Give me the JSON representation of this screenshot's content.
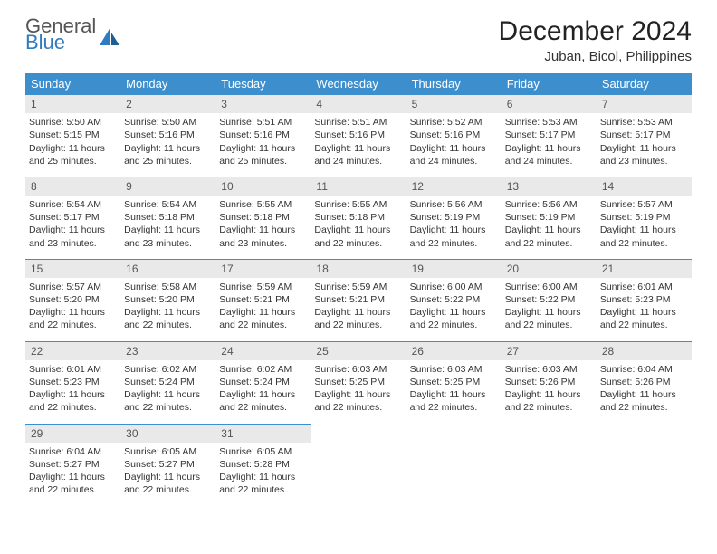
{
  "brand": {
    "line1": "General",
    "line2": "Blue"
  },
  "title": "December 2024",
  "location": "Juban, Bicol, Philippines",
  "colors": {
    "header_bg": "#3c8ecd",
    "header_text": "#ffffff",
    "daynum_bg": "#e9e9e9",
    "daynum_text": "#555555",
    "rule": "#3c8ecd",
    "brand_accent": "#2f7bbf"
  },
  "weekdays": [
    "Sunday",
    "Monday",
    "Tuesday",
    "Wednesday",
    "Thursday",
    "Friday",
    "Saturday"
  ],
  "weeks": [
    [
      {
        "n": "1",
        "sr": "Sunrise: 5:50 AM",
        "ss": "Sunset: 5:15 PM",
        "dl": "Daylight: 11 hours and 25 minutes."
      },
      {
        "n": "2",
        "sr": "Sunrise: 5:50 AM",
        "ss": "Sunset: 5:16 PM",
        "dl": "Daylight: 11 hours and 25 minutes."
      },
      {
        "n": "3",
        "sr": "Sunrise: 5:51 AM",
        "ss": "Sunset: 5:16 PM",
        "dl": "Daylight: 11 hours and 25 minutes."
      },
      {
        "n": "4",
        "sr": "Sunrise: 5:51 AM",
        "ss": "Sunset: 5:16 PM",
        "dl": "Daylight: 11 hours and 24 minutes."
      },
      {
        "n": "5",
        "sr": "Sunrise: 5:52 AM",
        "ss": "Sunset: 5:16 PM",
        "dl": "Daylight: 11 hours and 24 minutes."
      },
      {
        "n": "6",
        "sr": "Sunrise: 5:53 AM",
        "ss": "Sunset: 5:17 PM",
        "dl": "Daylight: 11 hours and 24 minutes."
      },
      {
        "n": "7",
        "sr": "Sunrise: 5:53 AM",
        "ss": "Sunset: 5:17 PM",
        "dl": "Daylight: 11 hours and 23 minutes."
      }
    ],
    [
      {
        "n": "8",
        "sr": "Sunrise: 5:54 AM",
        "ss": "Sunset: 5:17 PM",
        "dl": "Daylight: 11 hours and 23 minutes."
      },
      {
        "n": "9",
        "sr": "Sunrise: 5:54 AM",
        "ss": "Sunset: 5:18 PM",
        "dl": "Daylight: 11 hours and 23 minutes."
      },
      {
        "n": "10",
        "sr": "Sunrise: 5:55 AM",
        "ss": "Sunset: 5:18 PM",
        "dl": "Daylight: 11 hours and 23 minutes."
      },
      {
        "n": "11",
        "sr": "Sunrise: 5:55 AM",
        "ss": "Sunset: 5:18 PM",
        "dl": "Daylight: 11 hours and 22 minutes."
      },
      {
        "n": "12",
        "sr": "Sunrise: 5:56 AM",
        "ss": "Sunset: 5:19 PM",
        "dl": "Daylight: 11 hours and 22 minutes."
      },
      {
        "n": "13",
        "sr": "Sunrise: 5:56 AM",
        "ss": "Sunset: 5:19 PM",
        "dl": "Daylight: 11 hours and 22 minutes."
      },
      {
        "n": "14",
        "sr": "Sunrise: 5:57 AM",
        "ss": "Sunset: 5:19 PM",
        "dl": "Daylight: 11 hours and 22 minutes."
      }
    ],
    [
      {
        "n": "15",
        "sr": "Sunrise: 5:57 AM",
        "ss": "Sunset: 5:20 PM",
        "dl": "Daylight: 11 hours and 22 minutes."
      },
      {
        "n": "16",
        "sr": "Sunrise: 5:58 AM",
        "ss": "Sunset: 5:20 PM",
        "dl": "Daylight: 11 hours and 22 minutes."
      },
      {
        "n": "17",
        "sr": "Sunrise: 5:59 AM",
        "ss": "Sunset: 5:21 PM",
        "dl": "Daylight: 11 hours and 22 minutes."
      },
      {
        "n": "18",
        "sr": "Sunrise: 5:59 AM",
        "ss": "Sunset: 5:21 PM",
        "dl": "Daylight: 11 hours and 22 minutes."
      },
      {
        "n": "19",
        "sr": "Sunrise: 6:00 AM",
        "ss": "Sunset: 5:22 PM",
        "dl": "Daylight: 11 hours and 22 minutes."
      },
      {
        "n": "20",
        "sr": "Sunrise: 6:00 AM",
        "ss": "Sunset: 5:22 PM",
        "dl": "Daylight: 11 hours and 22 minutes."
      },
      {
        "n": "21",
        "sr": "Sunrise: 6:01 AM",
        "ss": "Sunset: 5:23 PM",
        "dl": "Daylight: 11 hours and 22 minutes."
      }
    ],
    [
      {
        "n": "22",
        "sr": "Sunrise: 6:01 AM",
        "ss": "Sunset: 5:23 PM",
        "dl": "Daylight: 11 hours and 22 minutes."
      },
      {
        "n": "23",
        "sr": "Sunrise: 6:02 AM",
        "ss": "Sunset: 5:24 PM",
        "dl": "Daylight: 11 hours and 22 minutes."
      },
      {
        "n": "24",
        "sr": "Sunrise: 6:02 AM",
        "ss": "Sunset: 5:24 PM",
        "dl": "Daylight: 11 hours and 22 minutes."
      },
      {
        "n": "25",
        "sr": "Sunrise: 6:03 AM",
        "ss": "Sunset: 5:25 PM",
        "dl": "Daylight: 11 hours and 22 minutes."
      },
      {
        "n": "26",
        "sr": "Sunrise: 6:03 AM",
        "ss": "Sunset: 5:25 PM",
        "dl": "Daylight: 11 hours and 22 minutes."
      },
      {
        "n": "27",
        "sr": "Sunrise: 6:03 AM",
        "ss": "Sunset: 5:26 PM",
        "dl": "Daylight: 11 hours and 22 minutes."
      },
      {
        "n": "28",
        "sr": "Sunrise: 6:04 AM",
        "ss": "Sunset: 5:26 PM",
        "dl": "Daylight: 11 hours and 22 minutes."
      }
    ],
    [
      {
        "n": "29",
        "sr": "Sunrise: 6:04 AM",
        "ss": "Sunset: 5:27 PM",
        "dl": "Daylight: 11 hours and 22 minutes."
      },
      {
        "n": "30",
        "sr": "Sunrise: 6:05 AM",
        "ss": "Sunset: 5:27 PM",
        "dl": "Daylight: 11 hours and 22 minutes."
      },
      {
        "n": "31",
        "sr": "Sunrise: 6:05 AM",
        "ss": "Sunset: 5:28 PM",
        "dl": "Daylight: 11 hours and 22 minutes."
      },
      null,
      null,
      null,
      null
    ]
  ]
}
